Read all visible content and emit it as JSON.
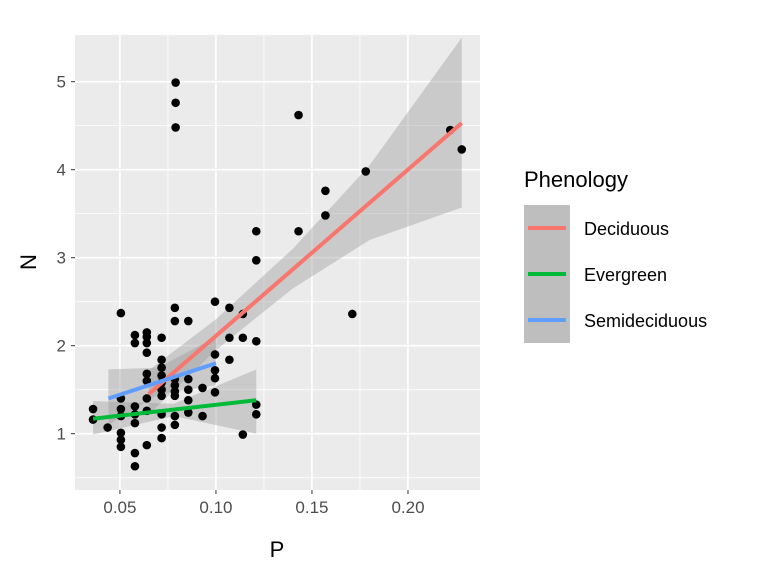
{
  "chart_data": {
    "type": "scatter",
    "title": "",
    "xlabel": "P",
    "ylabel": "N",
    "xlim": [
      0.0266,
      0.2375
    ],
    "ylim": [
      0.36,
      5.53
    ],
    "xticks": [
      0.05,
      0.1,
      0.15,
      0.2
    ],
    "xtick_labels": [
      "0.05",
      "0.10",
      "0.15",
      "0.20"
    ],
    "yticks": [
      1,
      2,
      3,
      4,
      5
    ],
    "ytick_labels": [
      "1",
      "2",
      "3",
      "4",
      "5"
    ],
    "grid": true,
    "legend": {
      "title": "Phenology",
      "placement": "right",
      "entries": [
        {
          "label": "Deciduous",
          "color": "#F8766D"
        },
        {
          "label": "Evergreen",
          "color": "#00BA38"
        },
        {
          "label": "Semideciduous",
          "color": "#619CFF"
        }
      ]
    },
    "points": [
      [
        0.079,
        4.99
      ],
      [
        0.079,
        4.76
      ],
      [
        0.079,
        4.48
      ],
      [
        0.143,
        4.62
      ],
      [
        0.222,
        4.45
      ],
      [
        0.228,
        4.23
      ],
      [
        0.178,
        3.98
      ],
      [
        0.157,
        3.76
      ],
      [
        0.157,
        3.48
      ],
      [
        0.143,
        3.3
      ],
      [
        0.121,
        3.3
      ],
      [
        0.121,
        2.97
      ],
      [
        0.171,
        2.36
      ],
      [
        0.0505,
        2.37
      ],
      [
        0.0786,
        2.43
      ],
      [
        0.0786,
        2.28
      ],
      [
        0.0856,
        2.28
      ],
      [
        0.0995,
        2.5
      ],
      [
        0.107,
        2.43
      ],
      [
        0.114,
        2.36
      ],
      [
        0.0578,
        2.12
      ],
      [
        0.0578,
        2.03
      ],
      [
        0.064,
        2.15
      ],
      [
        0.064,
        2.1
      ],
      [
        0.064,
        2.03
      ],
      [
        0.0717,
        2.09
      ],
      [
        0.064,
        1.92
      ],
      [
        0.0717,
        1.84
      ],
      [
        0.0717,
        1.75
      ],
      [
        0.107,
        2.09
      ],
      [
        0.114,
        2.09
      ],
      [
        0.121,
        2.05
      ],
      [
        0.0995,
        1.9
      ],
      [
        0.107,
        1.84
      ],
      [
        0.064,
        1.68
      ],
      [
        0.064,
        1.6
      ],
      [
        0.0717,
        1.66
      ],
      [
        0.0717,
        1.58
      ],
      [
        0.0717,
        1.5
      ],
      [
        0.0717,
        1.43
      ],
      [
        0.0786,
        1.62
      ],
      [
        0.0786,
        1.55
      ],
      [
        0.0786,
        1.48
      ],
      [
        0.0786,
        1.43
      ],
      [
        0.0856,
        1.62
      ],
      [
        0.0856,
        1.5
      ],
      [
        0.0856,
        1.38
      ],
      [
        0.093,
        1.52
      ],
      [
        0.093,
        1.2
      ],
      [
        0.0995,
        1.72
      ],
      [
        0.0995,
        1.63
      ],
      [
        0.0995,
        1.47
      ],
      [
        0.0505,
        1.4
      ],
      [
        0.0505,
        1.28
      ],
      [
        0.0505,
        1.2
      ],
      [
        0.0578,
        1.31
      ],
      [
        0.0578,
        1.12
      ],
      [
        0.0436,
        1.07
      ],
      [
        0.036,
        1.28
      ],
      [
        0.036,
        1.16
      ],
      [
        0.064,
        1.4
      ],
      [
        0.064,
        1.26
      ],
      [
        0.0717,
        1.07
      ],
      [
        0.0717,
        0.95
      ],
      [
        0.0786,
        1.2
      ],
      [
        0.0786,
        1.1
      ],
      [
        0.0856,
        1.24
      ],
      [
        0.121,
        1.33
      ],
      [
        0.121,
        1.22
      ],
      [
        0.114,
        0.99
      ],
      [
        0.0505,
        1.01
      ],
      [
        0.0505,
        0.93
      ],
      [
        0.0505,
        0.85
      ],
      [
        0.0578,
        0.78
      ],
      [
        0.0578,
        0.63
      ],
      [
        0.064,
        0.87
      ],
      [
        0.0717,
        1.22
      ],
      [
        0.0578,
        1.22
      ]
    ],
    "fits": [
      {
        "name": "Deciduous",
        "color": "#F8766D",
        "x": [
          0.065,
          0.228
        ],
        "y": [
          1.45,
          4.53
        ],
        "ribbon": {
          "x": [
            0.065,
            0.1,
            0.14,
            0.18,
            0.228
          ],
          "lower": [
            1.22,
            1.95,
            2.65,
            3.2,
            3.57
          ],
          "upper": [
            1.72,
            2.3,
            3.1,
            4.05,
            5.5
          ]
        }
      },
      {
        "name": "Evergreen",
        "color": "#00BA38",
        "x": [
          0.036,
          0.121
        ],
        "y": [
          1.17,
          1.38
        ],
        "ribbon": {
          "x": [
            0.036,
            0.078,
            0.121
          ],
          "lower": [
            0.99,
            1.2,
            1.0
          ],
          "upper": [
            1.37,
            1.34,
            1.73
          ]
        }
      },
      {
        "name": "Semideciduous",
        "color": "#619CFF",
        "x": [
          0.044,
          0.1
        ],
        "y": [
          1.4,
          1.8
        ],
        "ribbon": {
          "x": [
            0.044,
            0.07,
            0.1
          ],
          "lower": [
            1.1,
            1.45,
            1.55
          ],
          "upper": [
            1.73,
            1.75,
            2.1
          ]
        }
      }
    ]
  }
}
